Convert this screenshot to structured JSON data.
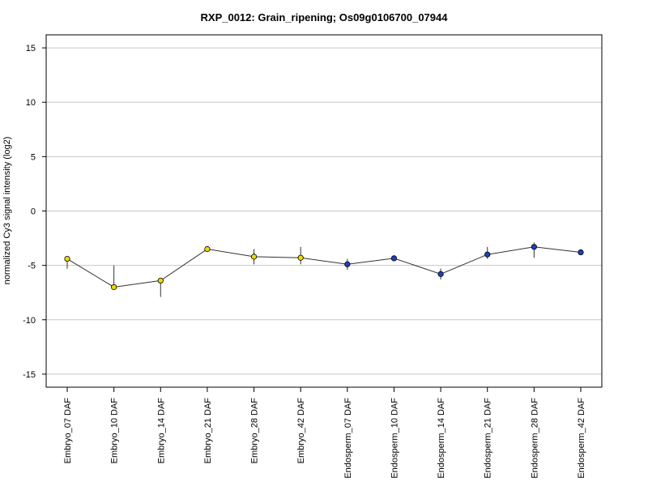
{
  "chart_data": {
    "type": "scatter",
    "title": "RXP_0012: Grain_ripening; Os09g0106700_07944",
    "xlabel": "",
    "ylabel": "normalized Cy3 signal intensity (log2)",
    "ylim": [
      -16.2,
      16.2
    ],
    "yticks": [
      15,
      10,
      5,
      0,
      -5,
      -10,
      -15
    ],
    "ytick_labels": [
      "15",
      "10",
      "5",
      "0",
      "-5",
      "-10",
      "-15"
    ],
    "grid": true,
    "categories": [
      "Embryo_07 DAF",
      "Embryo_10 DAF",
      "Embryo_14 DAF",
      "Embryo_21 DAF",
      "Embryo_28 DAF",
      "Embryo_42 DAF",
      "Endosperm_07 DAF",
      "Endosperm_10 DAF",
      "Endosperm_14 DAF",
      "Endosperm_21 DAF",
      "Endosperm_28 DAF",
      "Endosperm_42 DAF"
    ],
    "values": [
      -4.4,
      -7.0,
      -6.4,
      -3.5,
      -4.2,
      -4.3,
      -4.9,
      -4.35,
      -5.8,
      -4.0,
      -3.3,
      -3.8
    ],
    "error_low": [
      -5.3,
      -7.0,
      -7.9,
      -3.5,
      -4.9,
      -4.9,
      -5.4,
      -4.6,
      -6.3,
      -4.4,
      -4.3,
      -4.0
    ],
    "error_high": [
      -4.4,
      -5.0,
      -6.4,
      -3.4,
      -3.5,
      -3.3,
      -4.4,
      -4.1,
      -5.3,
      -3.3,
      -2.9,
      -3.6
    ],
    "point_colors": [
      "#f2d700",
      "#f2d700",
      "#f2d700",
      "#f2d700",
      "#f2d700",
      "#f2d700",
      "#1f3fbf",
      "#1f3fbf",
      "#1f3fbf",
      "#1f3fbf",
      "#1f3fbf",
      "#1f3fbf"
    ],
    "line_color": "#333333",
    "grid_color": "#c8c8c8"
  }
}
